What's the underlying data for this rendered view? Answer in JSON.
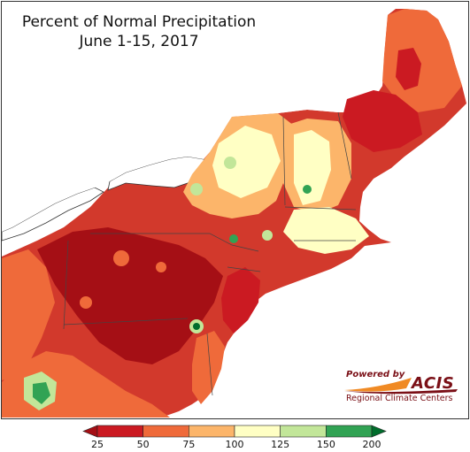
{
  "title": {
    "line1": "Percent of Normal Precipitation",
    "line2": "June 1-15, 2017"
  },
  "logo": {
    "powered_by": "Powered by",
    "name": "ACIS",
    "subtitle": "Regional Climate Centers"
  },
  "legend": {
    "bins": [
      {
        "range": "<25",
        "color": "#a50f15"
      },
      {
        "range": "25-50",
        "color": "#cb1a22"
      },
      {
        "range": "50-75",
        "color": "#ef6a3a"
      },
      {
        "range": "75-100",
        "color": "#fcb56a"
      },
      {
        "range": "100-125",
        "color": "#ffffc4"
      },
      {
        "range": "125-150",
        "color": "#c2e699"
      },
      {
        "range": "150-200",
        "color": "#31a354"
      },
      {
        "range": ">200",
        "color": "#006d2c"
      }
    ],
    "labels": [
      "25",
      "50",
      "75",
      "100",
      "125",
      "150",
      "200"
    ]
  }
}
